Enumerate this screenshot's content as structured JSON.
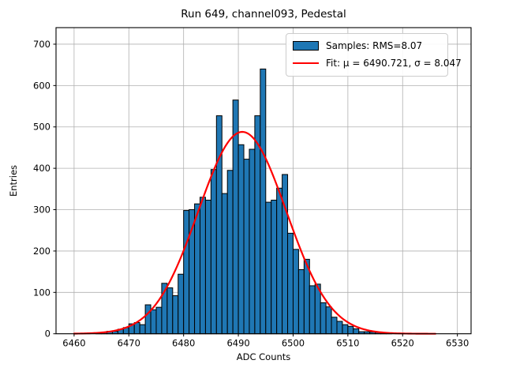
{
  "title": "Run 649, channel093, Pedestal",
  "xlabel": "ADC Counts",
  "ylabel": "Entries",
  "legend": {
    "samples_label": "Samples: RMS=8.07",
    "fit_label": "Fit: μ = 6490.721, σ = 8.047"
  },
  "chart_data": {
    "type": "bar",
    "subtype": "histogram",
    "title": "Run 649, channel093, Pedestal",
    "xlabel": "ADC Counts",
    "ylabel": "Entries",
    "bin_width": 1,
    "first_bin_left_edge": 6464,
    "counts": [
      2,
      4,
      6,
      6,
      11,
      15,
      24,
      27,
      22,
      70,
      58,
      64,
      122,
      111,
      92,
      144,
      298,
      300,
      314,
      330,
      323,
      397,
      527,
      339,
      395,
      565,
      457,
      422,
      446,
      527,
      640,
      318,
      323,
      352,
      385,
      243,
      204,
      155,
      180,
      116,
      120,
      75,
      65,
      40,
      30,
      22,
      18,
      12,
      5,
      5,
      4,
      3,
      2,
      1
    ],
    "fit": {
      "type": "gaussian",
      "mu": 6490.721,
      "sigma": 8.047,
      "amplitude": 488,
      "x_range": [
        6460,
        6526
      ]
    },
    "x_ticks": [
      6460,
      6470,
      6480,
      6490,
      6500,
      6510,
      6520,
      6530
    ],
    "y_ticks": [
      0,
      100,
      200,
      300,
      400,
      500,
      600,
      700
    ],
    "xlim": [
      6456.7,
      6532.5
    ],
    "ylim": [
      0,
      740
    ],
    "grid": true,
    "legend_position": "upper right",
    "colors": {
      "bar": "#1f77b4",
      "bar_edge": "#000000",
      "fit_line": "#ff0000",
      "grid": "#b0b0b0",
      "spine": "#000000",
      "text": "#000000"
    }
  }
}
